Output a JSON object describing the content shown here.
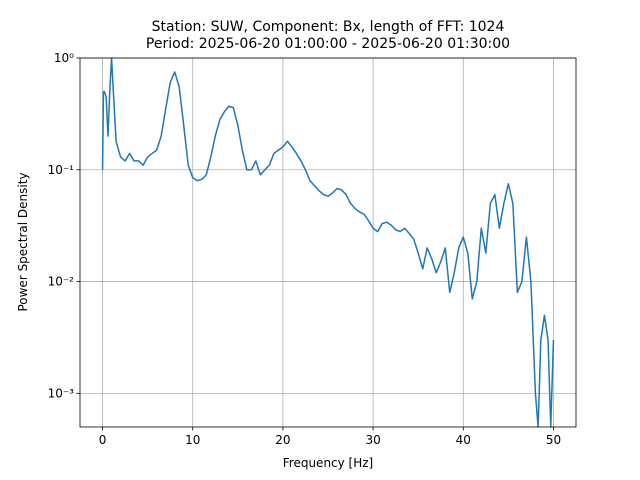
{
  "chart_data": {
    "type": "line",
    "title": "Station: SUW, Component: Bx, length of FFT: 1024",
    "subtitle": "Period: 2025-06-20 01:00:00 - 2025-06-20 01:30:00",
    "x_label": "Frequency [Hz]",
    "y_label": "Power Spectral Density",
    "x": [
      0,
      0.1,
      0.2,
      0.4,
      0.6,
      0.8,
      1.0,
      1.2,
      1.5,
      2,
      2.5,
      3,
      3.5,
      4,
      4.5,
      5,
      5.5,
      6,
      6.5,
      7,
      7.5,
      8,
      8.5,
      9,
      9.5,
      10,
      10.5,
      11,
      11.5,
      12,
      12.5,
      13,
      13.5,
      14,
      14.5,
      15,
      15.5,
      16,
      16.5,
      17,
      17.5,
      18,
      18.5,
      19,
      19.5,
      20,
      20.5,
      21,
      21.5,
      22,
      22.5,
      23,
      23.5,
      24,
      24.5,
      25,
      25.5,
      26,
      26.5,
      27,
      27.5,
      28,
      28.5,
      29,
      29.5,
      30,
      30.5,
      31,
      31.5,
      32,
      32.5,
      33,
      33.5,
      34,
      34.5,
      35,
      35.5,
      36,
      36.5,
      37,
      37.5,
      38,
      38.5,
      39,
      39.5,
      40,
      40.5,
      41,
      41.5,
      42,
      42.5,
      43,
      43.5,
      44,
      44.5,
      45,
      45.5,
      46,
      46.5,
      47,
      47.5,
      48,
      48.3,
      48.6,
      49,
      49.4,
      49.7,
      50
    ],
    "values": [
      0.1,
      0.5,
      0.5,
      0.45,
      0.2,
      0.5,
      1.0,
      0.5,
      0.18,
      0.13,
      0.12,
      0.14,
      0.12,
      0.12,
      0.11,
      0.13,
      0.14,
      0.15,
      0.2,
      0.35,
      0.6,
      0.75,
      0.55,
      0.25,
      0.11,
      0.085,
      0.08,
      0.082,
      0.09,
      0.13,
      0.2,
      0.28,
      0.33,
      0.37,
      0.36,
      0.25,
      0.15,
      0.1,
      0.1,
      0.12,
      0.09,
      0.1,
      0.11,
      0.14,
      0.15,
      0.16,
      0.18,
      0.16,
      0.14,
      0.12,
      0.1,
      0.08,
      0.072,
      0.065,
      0.06,
      0.058,
      0.062,
      0.068,
      0.066,
      0.06,
      0.05,
      0.045,
      0.042,
      0.04,
      0.035,
      0.03,
      0.028,
      0.033,
      0.034,
      0.032,
      0.029,
      0.028,
      0.03,
      0.027,
      0.024,
      0.018,
      0.013,
      0.02,
      0.016,
      0.012,
      0.015,
      0.02,
      0.008,
      0.012,
      0.02,
      0.025,
      0.018,
      0.007,
      0.01,
      0.03,
      0.018,
      0.05,
      0.06,
      0.03,
      0.05,
      0.075,
      0.05,
      0.008,
      0.01,
      0.025,
      0.01,
      0.001,
      0.0005,
      0.003,
      0.005,
      0.003,
      0.0005,
      0.003
    ],
    "color": "#1f77b4",
    "xlim": [
      -2.5,
      52.5
    ],
    "xticks": [
      0,
      10,
      20,
      30,
      40,
      50
    ],
    "ylim": [
      0.0005,
      1
    ],
    "log_y": true,
    "yticks": [
      {
        "value": 0.001,
        "label": "10⁻³"
      },
      {
        "value": 0.01,
        "label": "10⁻²"
      },
      {
        "value": 0.1,
        "label": "10⁻¹"
      },
      {
        "value": 1,
        "label": "10⁰"
      }
    ],
    "grid": true
  }
}
